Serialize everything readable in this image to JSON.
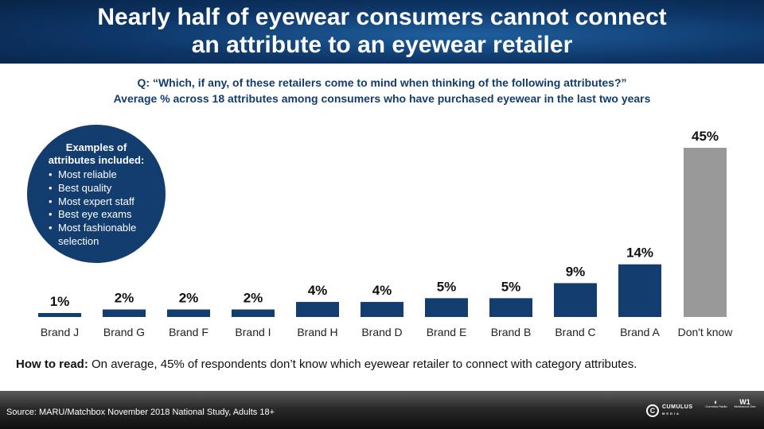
{
  "header": {
    "title_line1": "Nearly half of eyewear consumers cannot connect",
    "title_line2": "an attribute to an eyewear retailer"
  },
  "question": {
    "line1": "Q: “Which, if any, of these retailers come to mind when thinking of the following attributes?”",
    "line2": "Average % across 18 attributes among consumers who have purchased eyewear in the last two years"
  },
  "callout": {
    "heading_line1": "Examples of",
    "heading_line2": "attributes included:",
    "items": [
      "Most reliable",
      "Best quality",
      "Most expert staff",
      "Best eye exams",
      "Most fashionable selection"
    ]
  },
  "chart_data": {
    "type": "bar",
    "categories": [
      "Brand J",
      "Brand G",
      "Brand F",
      "Brand I",
      "Brand H",
      "Brand D",
      "Brand E",
      "Brand B",
      "Brand C",
      "Brand A",
      "Don't know"
    ],
    "values": [
      1,
      2,
      2,
      2,
      4,
      4,
      5,
      5,
      9,
      14,
      45
    ],
    "labels": [
      "1%",
      "2%",
      "2%",
      "2%",
      "4%",
      "4%",
      "5%",
      "5%",
      "9%",
      "14%",
      "45%"
    ],
    "unit": "%",
    "title": "",
    "xlabel": "",
    "ylabel": "",
    "colors": {
      "brand": "#123d6e",
      "dont_know": "#999999"
    },
    "grid": false,
    "legend": "none"
  },
  "how_to_read": {
    "label": "How to read:",
    "text": " On average, 45% of respondents don’t know which eyewear retailer to connect with category attributes."
  },
  "footer": {
    "source": "Source: MARU/Matchbox November 2018 National Study, Adults 18+",
    "logo_main": "CUMULUS",
    "logo_main_sub": "MEDIA",
    "logo_radio": "Cumulus Radio",
    "logo_westwood": "Westwood One"
  },
  "colors": {
    "header": "#0d3566",
    "accent": "#123d6e",
    "dont_know": "#999999"
  },
  "icons": {
    "logo_main_mark": "cumulus-c-icon"
  }
}
